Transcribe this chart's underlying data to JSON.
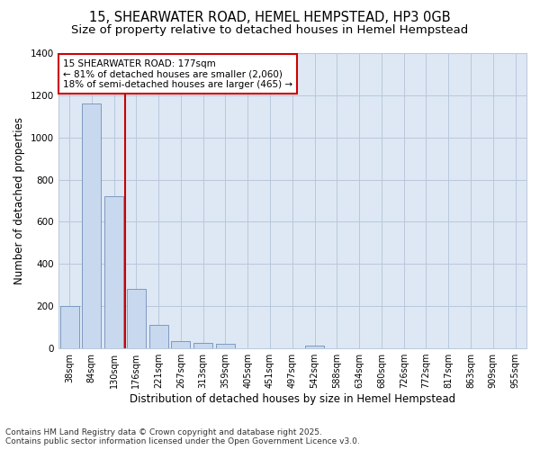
{
  "title": "15, SHEARWATER ROAD, HEMEL HEMPSTEAD, HP3 0GB",
  "subtitle": "Size of property relative to detached houses in Hemel Hempstead",
  "xlabel": "Distribution of detached houses by size in Hemel Hempstead",
  "ylabel": "Number of detached properties",
  "categories": [
    "38sqm",
    "84sqm",
    "130sqm",
    "176sqm",
    "221sqm",
    "267sqm",
    "313sqm",
    "359sqm",
    "405sqm",
    "451sqm",
    "497sqm",
    "542sqm",
    "588sqm",
    "634sqm",
    "680sqm",
    "726sqm",
    "772sqm",
    "817sqm",
    "863sqm",
    "909sqm",
    "955sqm"
  ],
  "values": [
    200,
    1160,
    720,
    280,
    110,
    35,
    28,
    20,
    0,
    0,
    0,
    15,
    0,
    0,
    0,
    0,
    0,
    0,
    0,
    0,
    0
  ],
  "bar_color": "#c8d8ee",
  "bar_edge_color": "#7090b8",
  "grid_color": "#b8c8dc",
  "plot_bg_color": "#dde8f4",
  "fig_bg_color": "#ffffff",
  "vline_color": "#cc0000",
  "vline_index": 2.5,
  "annotation_text": "15 SHEARWATER ROAD: 177sqm\n← 81% of detached houses are smaller (2,060)\n18% of semi-detached houses are larger (465) →",
  "annotation_box_facecolor": "#ffffff",
  "annotation_box_edgecolor": "#cc0000",
  "ylim": [
    0,
    1400
  ],
  "yticks": [
    0,
    200,
    400,
    600,
    800,
    1000,
    1200,
    1400
  ],
  "footer": "Contains HM Land Registry data © Crown copyright and database right 2025.\nContains public sector information licensed under the Open Government Licence v3.0.",
  "title_fontsize": 10.5,
  "subtitle_fontsize": 9.5,
  "ylabel_fontsize": 8.5,
  "xlabel_fontsize": 8.5,
  "tick_fontsize": 7,
  "annotation_fontsize": 7.5,
  "footer_fontsize": 6.5
}
